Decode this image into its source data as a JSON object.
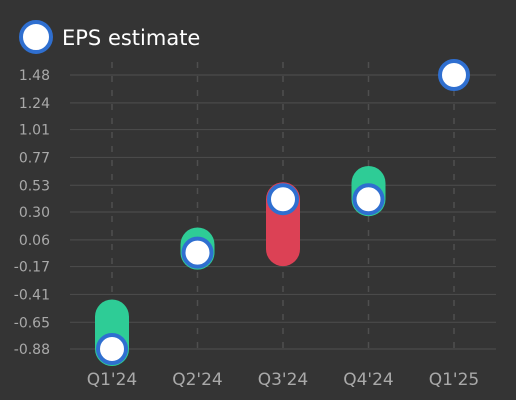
{
  "chart_data": {
    "type": "range-marker",
    "title": "",
    "xlabel": "",
    "ylabel": "",
    "ylim": [
      -0.96,
      1.57
    ],
    "y_ticks": [
      "1.48",
      "1.24",
      "1.01",
      "0.77",
      "0.53",
      "0.30",
      "0.06",
      "-0.17",
      "-0.41",
      "-0.65",
      "-0.88"
    ],
    "categories": [
      "Q1'24",
      "Q2'24",
      "Q3'24",
      "Q4'24",
      "Q1'25"
    ],
    "series": [
      {
        "name": "EPS estimate",
        "marker_color": "#ffffff",
        "marker_border": "#2f6fd0",
        "estimate": [
          -0.88,
          -0.05,
          0.41,
          0.41,
          1.48
        ],
        "actual": [
          -0.6,
          0.02,
          -0.02,
          0.55,
          null
        ]
      }
    ],
    "beat_color": "#2ecc96",
    "miss_color": "#dc4155",
    "grid": true,
    "legend": "top-left"
  }
}
